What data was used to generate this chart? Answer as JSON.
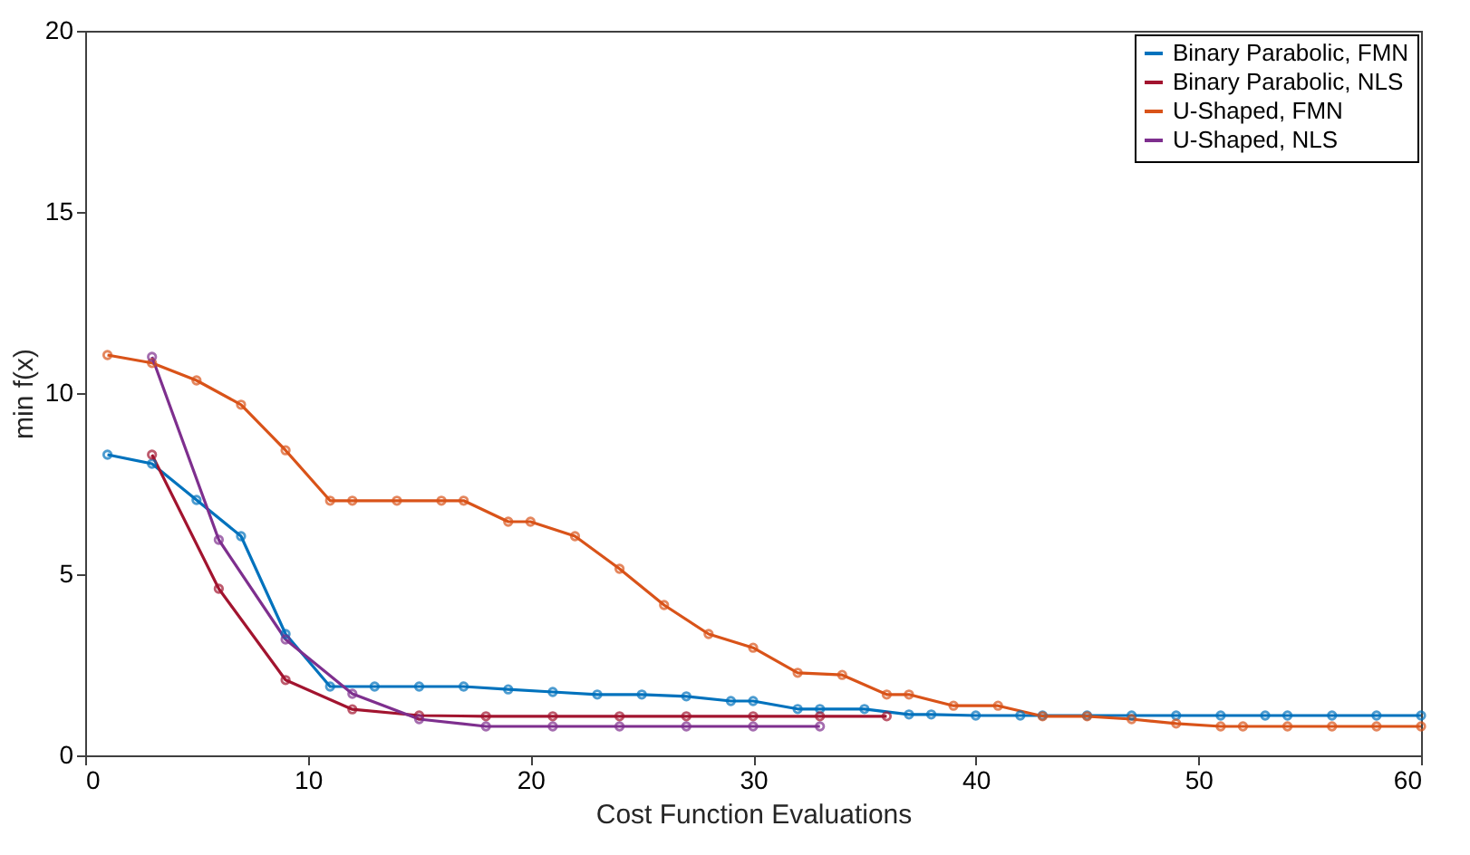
{
  "chart_data": {
    "type": "line",
    "xlabel": "Cost Function Evaluations",
    "ylabel": "min f(x)",
    "xlim": [
      0,
      60
    ],
    "ylim": [
      0,
      20
    ],
    "xticks": [
      0,
      10,
      20,
      30,
      40,
      50,
      60
    ],
    "yticks": [
      0,
      5,
      10,
      15,
      20
    ],
    "grid": false,
    "legend": "top right",
    "marker": "circle",
    "line_style": "solid",
    "series": [
      {
        "name": "Binary Parabolic, FMN",
        "color": "#0072bd",
        "x": [
          1,
          3,
          5,
          7,
          9,
          11,
          13,
          15,
          17,
          19,
          21,
          23,
          25,
          27,
          29,
          30,
          32,
          33,
          35,
          37,
          38,
          40,
          42,
          43,
          45,
          47,
          49,
          51,
          53,
          54,
          56,
          58,
          60
        ],
        "values": [
          8.3,
          8.05,
          7.05,
          6.05,
          3.35,
          1.9,
          1.9,
          1.9,
          1.9,
          1.82,
          1.75,
          1.68,
          1.68,
          1.63,
          1.5,
          1.5,
          1.28,
          1.28,
          1.28,
          1.13,
          1.13,
          1.1,
          1.1,
          1.1,
          1.1,
          1.1,
          1.1,
          1.1,
          1.1,
          1.1,
          1.1,
          1.1,
          1.1
        ]
      },
      {
        "name": "Binary Parabolic, NLS",
        "color": "#a2142f",
        "x": [
          3,
          6,
          9,
          12,
          15,
          18,
          21,
          24,
          27,
          30,
          33,
          36
        ],
        "values": [
          8.3,
          4.6,
          2.08,
          1.27,
          1.1,
          1.08,
          1.08,
          1.08,
          1.08,
          1.08,
          1.08,
          1.08
        ]
      },
      {
        "name": "U-Shaped, FMN",
        "color": "#d95319",
        "x": [
          1,
          3,
          5,
          7,
          9,
          11,
          12,
          14,
          16,
          17,
          19,
          20,
          22,
          24,
          26,
          28,
          30,
          32,
          34,
          36,
          37,
          39,
          41,
          43,
          45,
          47,
          49,
          51,
          52,
          54,
          56,
          58,
          60
        ],
        "values": [
          11.05,
          10.83,
          10.35,
          9.68,
          8.42,
          7.03,
          7.03,
          7.03,
          7.03,
          7.03,
          6.45,
          6.45,
          6.05,
          5.15,
          4.15,
          3.35,
          2.97,
          2.28,
          2.22,
          1.68,
          1.68,
          1.37,
          1.37,
          1.08,
          1.08,
          1.0,
          0.88,
          0.8,
          0.8,
          0.8,
          0.8,
          0.8,
          0.8
        ]
      },
      {
        "name": "U-Shaped, NLS",
        "color": "#7e2f8e",
        "x": [
          3,
          6,
          9,
          12,
          15,
          18,
          21,
          24,
          27,
          30,
          33
        ],
        "values": [
          11.0,
          5.95,
          3.2,
          1.7,
          1.0,
          0.8,
          0.8,
          0.8,
          0.8,
          0.8,
          0.8
        ]
      }
    ]
  }
}
